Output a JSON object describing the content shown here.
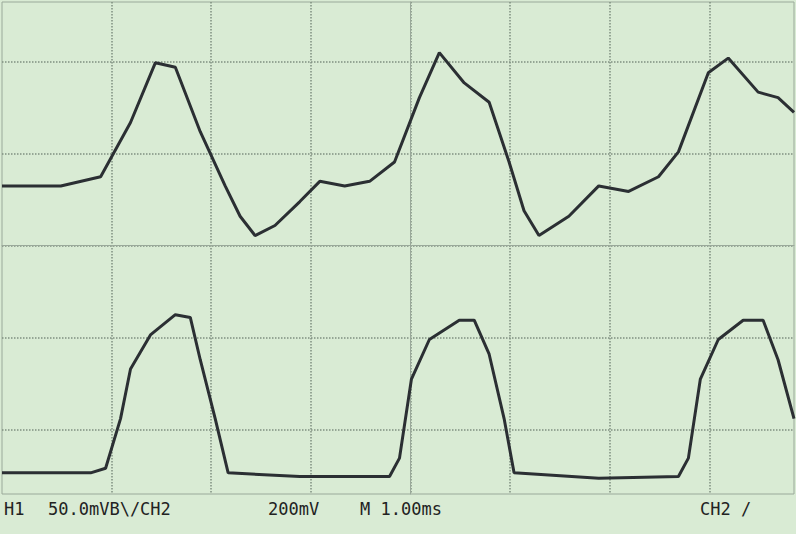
{
  "chart_data": {
    "type": "line",
    "annotations": [
      "H1",
      "50.0mVB\\/CH2",
      "200mV",
      "M 1.00ms",
      "CH2 /"
    ],
    "xlim": [
      -4.1,
      3.85
    ],
    "xticks": [
      -3,
      -2,
      -1,
      0,
      1,
      2,
      3
    ],
    "ylim": [
      -2.7,
      2.65
    ],
    "yticks": [
      -2,
      -1,
      0,
      1,
      2
    ],
    "grid": true,
    "tick_labels": false,
    "series": [
      {
        "color": "#2b2f33",
        "x": [
          -4.1,
          -3.51,
          -3.11,
          -2.81,
          -2.56,
          -2.36,
          -2.11,
          -1.86,
          -1.71,
          -1.56,
          -1.36,
          -1.11,
          -0.91,
          -0.66,
          -0.41,
          -0.16,
          0.09,
          0.29,
          0.54,
          0.79,
          0.99,
          1.14,
          1.29,
          1.59,
          1.89,
          2.19,
          2.49,
          2.69,
          2.99,
          3.19,
          3.49,
          3.69,
          3.85
        ],
        "values": [
          0.65,
          0.65,
          0.75,
          1.34,
          1.99,
          1.94,
          1.24,
          0.65,
          0.32,
          0.11,
          0.22,
          0.48,
          0.7,
          0.65,
          0.7,
          0.91,
          1.61,
          2.1,
          1.77,
          1.56,
          0.91,
          0.38,
          0.11,
          0.32,
          0.65,
          0.59,
          0.75,
          1.02,
          1.88,
          2.04,
          1.67,
          1.61,
          1.45
        ]
      },
      {
        "color": "#2b2f33",
        "x": [
          -4.1,
          -3.21,
          -3.06,
          -2.91,
          -2.81,
          -2.61,
          -2.36,
          -2.21,
          -2.11,
          -1.96,
          -1.83,
          -1.11,
          -0.21,
          -0.11,
          0.01,
          0.19,
          0.49,
          0.64,
          0.79,
          0.94,
          1.04,
          1.89,
          2.69,
          2.79,
          2.91,
          3.09,
          3.34,
          3.54,
          3.69,
          3.85
        ],
        "values": [
          -2.47,
          -2.47,
          -2.42,
          -1.88,
          -1.34,
          -0.97,
          -0.75,
          -0.78,
          -1.24,
          -1.88,
          -2.47,
          -2.51,
          -2.51,
          -2.31,
          -1.45,
          -1.02,
          -0.81,
          -0.81,
          -1.18,
          -1.88,
          -2.47,
          -2.53,
          -2.51,
          -2.31,
          -1.45,
          -1.02,
          -0.81,
          -0.81,
          -1.24,
          -1.88
        ]
      }
    ]
  }
}
